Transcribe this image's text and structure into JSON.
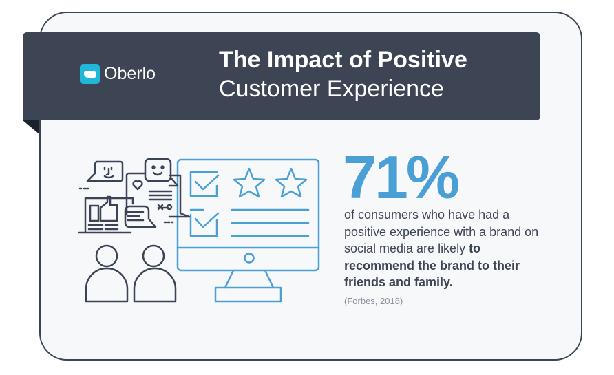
{
  "brand": {
    "name": "Oberlo",
    "icon": "price-tag-icon"
  },
  "header": {
    "title_line1": "The Impact of Positive",
    "title_line2": "Customer Experience"
  },
  "stat": {
    "value": "71%",
    "description": "of consumers who have had a positive experience with a brand on social media are likely",
    "description_bold": "to recommend the brand to their friends and family.",
    "source": "(Forbes, 2018)"
  },
  "colors": {
    "banner": "#3d4555",
    "accent": "#4a9fd5",
    "logo": "#1fb8d8"
  }
}
